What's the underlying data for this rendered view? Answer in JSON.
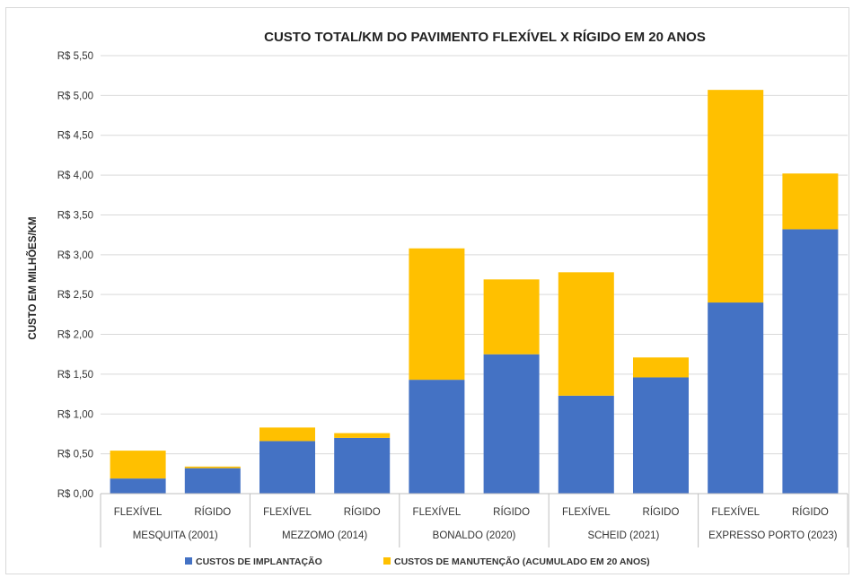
{
  "chart_data": {
    "type": "bar",
    "stacked": true,
    "title": "CUSTO TOTAL/KM DO PAVIMENTO FLEXÍVEL X RÍGIDO EM 20 ANOS",
    "ylabel": "CUSTO EM MILHÕES/KM",
    "xlabel": "",
    "ylim": [
      0,
      5.5
    ],
    "ytick_step": 0.5,
    "ytick_labels": [
      "R$ 0,00",
      "R$ 0,50",
      "R$ 1,00",
      "R$ 1,50",
      "R$ 2,00",
      "R$ 2,50",
      "R$ 3,00",
      "R$ 3,50",
      "R$ 4,00",
      "R$ 4,50",
      "R$ 5,00",
      "R$ 5,50"
    ],
    "grid": true,
    "legend_position": "bottom",
    "groups": [
      {
        "label": "MESQUITA (2001)",
        "categories": [
          "FLEXÍVEL",
          "RÍGIDO"
        ]
      },
      {
        "label": "MEZZOMO (2014)",
        "categories": [
          "FLEXÍVEL",
          "RÍGIDO"
        ]
      },
      {
        "label": "BONALDO (2020)",
        "categories": [
          "FLEXÍVEL",
          "RÍGIDO"
        ]
      },
      {
        "label": "SCHEID (2021)",
        "categories": [
          "FLEXÍVEL",
          "RÍGIDO"
        ]
      },
      {
        "label": "EXPRESSO PORTO (2023)",
        "categories": [
          "FLEXÍVEL",
          "RÍGIDO"
        ]
      }
    ],
    "series": [
      {
        "name": "CUSTOS DE IMPLANTAÇÃO",
        "color": "#4472c4",
        "values": [
          0.19,
          0.32,
          0.66,
          0.7,
          1.43,
          1.75,
          1.23,
          1.46,
          2.4,
          3.32
        ]
      },
      {
        "name": "CUSTOS DE MANUTENÇÃO (ACUMULADO EM 20 ANOS)",
        "color": "#ffc000",
        "values": [
          0.35,
          0.02,
          0.17,
          0.06,
          1.65,
          0.94,
          1.55,
          0.25,
          2.67,
          0.7
        ]
      }
    ]
  }
}
